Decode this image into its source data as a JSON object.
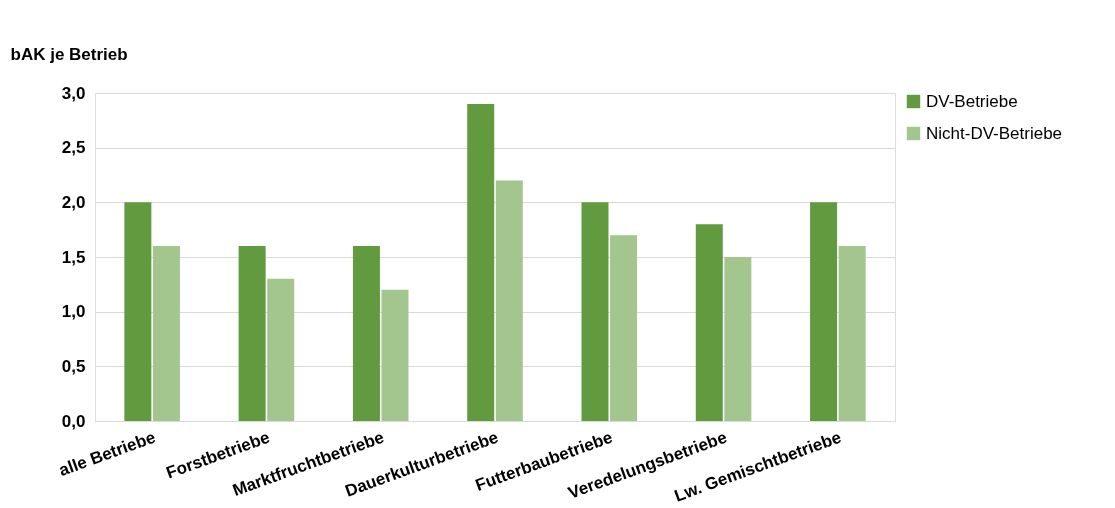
{
  "chart_data": {
    "type": "bar",
    "ylabel": "bAK je Betrieb",
    "categories": [
      "alle Betriebe",
      "Forstbetriebe",
      "Marktfruchtbetriebe",
      "Dauerkulturbetriebe",
      "Futterbaubetriebe",
      "Veredelungsbetriebe",
      "Lw. Gemischtbetriebe"
    ],
    "series": [
      {
        "name": "DV-Betriebe",
        "color": "#629b3f",
        "values": [
          2.0,
          1.6,
          1.6,
          2.9,
          2.0,
          1.8,
          2.0
        ]
      },
      {
        "name": "Nicht-DV-Betriebe",
        "color": "#a3c68e",
        "values": [
          1.6,
          1.3,
          1.2,
          2.2,
          1.7,
          1.5,
          1.6
        ]
      }
    ],
    "ylim": [
      0,
      3
    ],
    "yticks": [
      {
        "value": 0,
        "label": "0,0"
      },
      {
        "value": 0.5,
        "label": "0,5"
      },
      {
        "value": 1,
        "label": "1,0"
      },
      {
        "value": 1.5,
        "label": "1,5"
      },
      {
        "value": 2,
        "label": "2,0"
      },
      {
        "value": 2.5,
        "label": "2,5"
      },
      {
        "value": 3,
        "label": "3,0"
      }
    ],
    "grid": "y",
    "legend": "right"
  }
}
